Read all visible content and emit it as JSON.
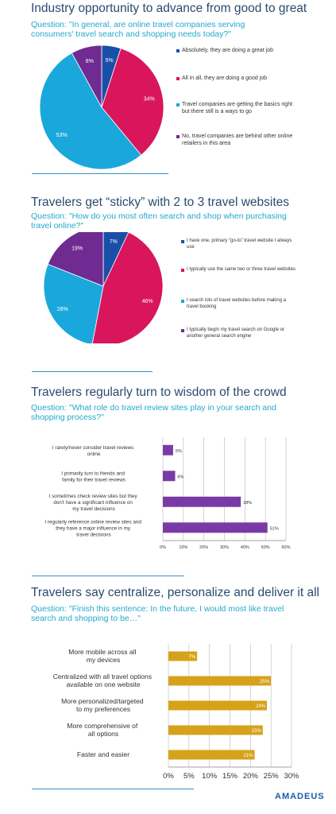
{
  "colors": {
    "title": "#2b4a6f",
    "question": "#22a9cf",
    "rule": "#3b8fc4",
    "pie_blue": "#1a4fa8",
    "pie_pink": "#d9155b",
    "pie_teal": "#1aa8dc",
    "pie_purple": "#6f2b91",
    "bar_purple": "#7a3aa6",
    "bar_gold": "#d6a21a"
  },
  "panel1": {
    "title": "Industry opportunity to advance from good to great",
    "question": "Question: \"In general, are online travel companies serving consumers' travel search and shopping needs today?\""
  },
  "panel2": {
    "title": "Travelers get “sticky” with 2 to 3 travel websites",
    "question": "Question: \"How do you most often search and shop when purchasing travel online?\""
  },
  "panel3": {
    "title": "Travelers regularly turn to wisdom of the crowd",
    "question": "Question: \"What role do travel review sites play in your search and shopping process?\""
  },
  "panel4": {
    "title": "Travelers say centralize, personalize and deliver it all",
    "question": "Question: \"Finish this sentence: In the future, I would most like travel search and shopping to be…\""
  },
  "logo": "AMADEUS",
  "chart_data": [
    {
      "type": "pie",
      "slices": [
        {
          "label": "Absolutely, they are doing a great job",
          "value": 5,
          "display": "5%",
          "color": "#1a4fa8"
        },
        {
          "label": "All in all, they are doing a good job",
          "value": 34,
          "display": "34%",
          "color": "#d9155b"
        },
        {
          "label": "Travel companies are getting the basics right but there still is a ways to go",
          "value": 53,
          "display": "53%",
          "color": "#1aa8dc"
        },
        {
          "label": "No, travel companies are behind other online retailers in this area",
          "value": 8,
          "display": "8%",
          "color": "#6f2b91"
        }
      ]
    },
    {
      "type": "pie",
      "slices": [
        {
          "label": "I have one, primary “go-to” travel website I always use",
          "value": 7,
          "display": "7%",
          "color": "#1a4fa8"
        },
        {
          "label": "I typically use the same two or three travel websites",
          "value": 46,
          "display": "46%",
          "color": "#d9155b"
        },
        {
          "label": "I search lots of travel websites before making a travel booking",
          "value": 28,
          "display": "28%",
          "color": "#1aa8dc"
        },
        {
          "label": "I typically begin my travel search on Google or another general search engine",
          "value": 19,
          "display": "19%",
          "color": "#6f2b91"
        }
      ]
    },
    {
      "type": "bar",
      "orientation": "horizontal",
      "categories": [
        "I rarely/never consider travel reviews online",
        "I primarily turn to friends and family for their travel reviews and recommendations",
        "I sometimes check review sites but they don't have a significant influence on my travel decisions",
        "I regularly reference online review sites and they have a major influence in my travel decisions"
      ],
      "values": [
        5,
        6,
        38,
        51
      ],
      "value_labels": [
        "5%",
        "6%",
        "38%",
        "51%"
      ],
      "xlim": [
        0,
        60
      ],
      "xticks": [
        "0%",
        "10%",
        "20%",
        "30%",
        "40%",
        "50%",
        "60%"
      ],
      "grid": true
    },
    {
      "type": "bar",
      "orientation": "horizontal",
      "categories": [
        "More mobile across all my devices",
        "Centralized with all travel options available on one website",
        "More personalized/targeted to my preferences",
        "More comprehensive of all options",
        "Faster and easier"
      ],
      "values": [
        7,
        25,
        24,
        23,
        21
      ],
      "value_labels": [
        "7%",
        "25%",
        "24%",
        "23%",
        "21%"
      ],
      "xlim": [
        0,
        30
      ],
      "xticks": [
        "0%",
        "5%",
        "10%",
        "15%",
        "20%",
        "25%",
        "30%"
      ],
      "grid": true
    }
  ]
}
